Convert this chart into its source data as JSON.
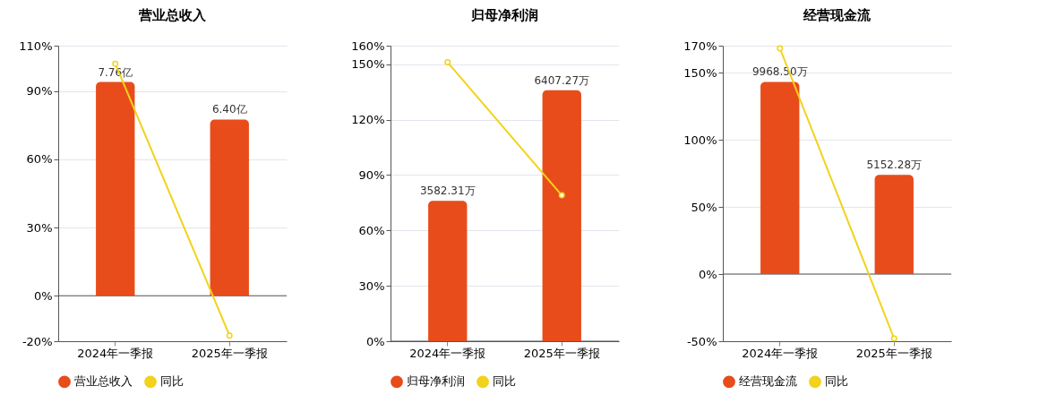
{
  "chart_data": [
    {
      "type": "bar",
      "title": "营业总收入",
      "categories": [
        "2024年一季报",
        "2025年一季报"
      ],
      "ylim": [
        -20,
        110
      ],
      "yticks": [
        {
          "value": -20,
          "label": "-20%"
        },
        {
          "value": 0,
          "label": "0%"
        },
        {
          "value": 30,
          "label": "30%"
        },
        {
          "value": 60,
          "label": "60%"
        },
        {
          "value": 90,
          "label": "90%"
        },
        {
          "value": 110,
          "label": "110%"
        }
      ],
      "y2lim": [
        -1.65,
        9.08
      ],
      "grid": "y",
      "legend": "bottom",
      "series": [
        {
          "name": "营业总收入",
          "axis": "y2",
          "color": "#e84c1b",
          "values": [
            7.76,
            6.4
          ],
          "value_labels": [
            "7.76亿",
            "6.40亿"
          ]
        },
        {
          "name": "同比",
          "type": "line",
          "color": "#f2d21a",
          "marker": "circle",
          "values": [
            102,
            -17.5
          ]
        }
      ]
    },
    {
      "type": "bar",
      "title": "归母净利润",
      "categories": [
        "2024年一季报",
        "2025年一季报"
      ],
      "ylim": [
        0,
        160
      ],
      "yticks": [
        {
          "value": 0,
          "label": "0%"
        },
        {
          "value": 30,
          "label": "30%"
        },
        {
          "value": 60,
          "label": "60%"
        },
        {
          "value": 90,
          "label": "90%"
        },
        {
          "value": 120,
          "label": "120%"
        },
        {
          "value": 150,
          "label": "150%"
        },
        {
          "value": 160,
          "label": "160%"
        }
      ],
      "y2lim": [
        0,
        7542
      ],
      "grid": "y",
      "legend": "bottom",
      "series": [
        {
          "name": "归母净利润",
          "axis": "y2",
          "color": "#e84c1b",
          "values": [
            3582.31,
            6407.27
          ],
          "value_labels": [
            "3582.31万",
            "6407.27万"
          ]
        },
        {
          "name": "同比",
          "type": "line",
          "color": "#f2d21a",
          "marker": "circle",
          "values": [
            151,
            79
          ]
        }
      ]
    },
    {
      "type": "bar",
      "title": "经营现金流",
      "categories": [
        "2024年一季报",
        "2025年一季报"
      ],
      "ylim": [
        -50,
        170
      ],
      "yticks": [
        {
          "value": -50,
          "label": "-50%"
        },
        {
          "value": 0,
          "label": "0%"
        },
        {
          "value": 50,
          "label": "50%"
        },
        {
          "value": 100,
          "label": "100%"
        },
        {
          "value": 150,
          "label": "150%"
        },
        {
          "value": 170,
          "label": "170%"
        }
      ],
      "y2lim": [
        -3485,
        11850
      ],
      "grid": "y",
      "legend": "bottom",
      "series": [
        {
          "name": "经营现金流",
          "axis": "y2",
          "color": "#e84c1b",
          "values": [
            9968.5,
            5152.28
          ],
          "value_labels": [
            "9968.50万",
            "5152.28万"
          ]
        },
        {
          "name": "同比",
          "type": "line",
          "color": "#f2d21a",
          "marker": "circle",
          "values": [
            168,
            -48
          ]
        }
      ]
    }
  ]
}
